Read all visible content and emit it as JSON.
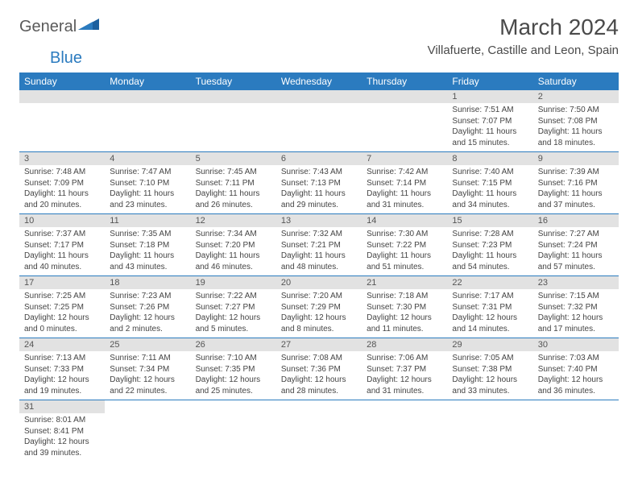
{
  "logo": {
    "text1": "General",
    "text2": "Blue"
  },
  "title": "March 2024",
  "location": "Villafuerte, Castille and Leon, Spain",
  "colors": {
    "header_bg": "#2b7bbf",
    "header_text": "#ffffff",
    "daynum_bg": "#e2e2e2",
    "row_border": "#2b7bbf",
    "body_text": "#444444",
    "title_text": "#4a4a4a"
  },
  "weekdays": [
    "Sunday",
    "Monday",
    "Tuesday",
    "Wednesday",
    "Thursday",
    "Friday",
    "Saturday"
  ],
  "weeks": [
    [
      {
        "n": "",
        "sunrise": "",
        "sunset": "",
        "daylight": ""
      },
      {
        "n": "",
        "sunrise": "",
        "sunset": "",
        "daylight": ""
      },
      {
        "n": "",
        "sunrise": "",
        "sunset": "",
        "daylight": ""
      },
      {
        "n": "",
        "sunrise": "",
        "sunset": "",
        "daylight": ""
      },
      {
        "n": "",
        "sunrise": "",
        "sunset": "",
        "daylight": ""
      },
      {
        "n": "1",
        "sunrise": "Sunrise: 7:51 AM",
        "sunset": "Sunset: 7:07 PM",
        "daylight": "Daylight: 11 hours and 15 minutes."
      },
      {
        "n": "2",
        "sunrise": "Sunrise: 7:50 AM",
        "sunset": "Sunset: 7:08 PM",
        "daylight": "Daylight: 11 hours and 18 minutes."
      }
    ],
    [
      {
        "n": "3",
        "sunrise": "Sunrise: 7:48 AM",
        "sunset": "Sunset: 7:09 PM",
        "daylight": "Daylight: 11 hours and 20 minutes."
      },
      {
        "n": "4",
        "sunrise": "Sunrise: 7:47 AM",
        "sunset": "Sunset: 7:10 PM",
        "daylight": "Daylight: 11 hours and 23 minutes."
      },
      {
        "n": "5",
        "sunrise": "Sunrise: 7:45 AM",
        "sunset": "Sunset: 7:11 PM",
        "daylight": "Daylight: 11 hours and 26 minutes."
      },
      {
        "n": "6",
        "sunrise": "Sunrise: 7:43 AM",
        "sunset": "Sunset: 7:13 PM",
        "daylight": "Daylight: 11 hours and 29 minutes."
      },
      {
        "n": "7",
        "sunrise": "Sunrise: 7:42 AM",
        "sunset": "Sunset: 7:14 PM",
        "daylight": "Daylight: 11 hours and 31 minutes."
      },
      {
        "n": "8",
        "sunrise": "Sunrise: 7:40 AM",
        "sunset": "Sunset: 7:15 PM",
        "daylight": "Daylight: 11 hours and 34 minutes."
      },
      {
        "n": "9",
        "sunrise": "Sunrise: 7:39 AM",
        "sunset": "Sunset: 7:16 PM",
        "daylight": "Daylight: 11 hours and 37 minutes."
      }
    ],
    [
      {
        "n": "10",
        "sunrise": "Sunrise: 7:37 AM",
        "sunset": "Sunset: 7:17 PM",
        "daylight": "Daylight: 11 hours and 40 minutes."
      },
      {
        "n": "11",
        "sunrise": "Sunrise: 7:35 AM",
        "sunset": "Sunset: 7:18 PM",
        "daylight": "Daylight: 11 hours and 43 minutes."
      },
      {
        "n": "12",
        "sunrise": "Sunrise: 7:34 AM",
        "sunset": "Sunset: 7:20 PM",
        "daylight": "Daylight: 11 hours and 46 minutes."
      },
      {
        "n": "13",
        "sunrise": "Sunrise: 7:32 AM",
        "sunset": "Sunset: 7:21 PM",
        "daylight": "Daylight: 11 hours and 48 minutes."
      },
      {
        "n": "14",
        "sunrise": "Sunrise: 7:30 AM",
        "sunset": "Sunset: 7:22 PM",
        "daylight": "Daylight: 11 hours and 51 minutes."
      },
      {
        "n": "15",
        "sunrise": "Sunrise: 7:28 AM",
        "sunset": "Sunset: 7:23 PM",
        "daylight": "Daylight: 11 hours and 54 minutes."
      },
      {
        "n": "16",
        "sunrise": "Sunrise: 7:27 AM",
        "sunset": "Sunset: 7:24 PM",
        "daylight": "Daylight: 11 hours and 57 minutes."
      }
    ],
    [
      {
        "n": "17",
        "sunrise": "Sunrise: 7:25 AM",
        "sunset": "Sunset: 7:25 PM",
        "daylight": "Daylight: 12 hours and 0 minutes."
      },
      {
        "n": "18",
        "sunrise": "Sunrise: 7:23 AM",
        "sunset": "Sunset: 7:26 PM",
        "daylight": "Daylight: 12 hours and 2 minutes."
      },
      {
        "n": "19",
        "sunrise": "Sunrise: 7:22 AM",
        "sunset": "Sunset: 7:27 PM",
        "daylight": "Daylight: 12 hours and 5 minutes."
      },
      {
        "n": "20",
        "sunrise": "Sunrise: 7:20 AM",
        "sunset": "Sunset: 7:29 PM",
        "daylight": "Daylight: 12 hours and 8 minutes."
      },
      {
        "n": "21",
        "sunrise": "Sunrise: 7:18 AM",
        "sunset": "Sunset: 7:30 PM",
        "daylight": "Daylight: 12 hours and 11 minutes."
      },
      {
        "n": "22",
        "sunrise": "Sunrise: 7:17 AM",
        "sunset": "Sunset: 7:31 PM",
        "daylight": "Daylight: 12 hours and 14 minutes."
      },
      {
        "n": "23",
        "sunrise": "Sunrise: 7:15 AM",
        "sunset": "Sunset: 7:32 PM",
        "daylight": "Daylight: 12 hours and 17 minutes."
      }
    ],
    [
      {
        "n": "24",
        "sunrise": "Sunrise: 7:13 AM",
        "sunset": "Sunset: 7:33 PM",
        "daylight": "Daylight: 12 hours and 19 minutes."
      },
      {
        "n": "25",
        "sunrise": "Sunrise: 7:11 AM",
        "sunset": "Sunset: 7:34 PM",
        "daylight": "Daylight: 12 hours and 22 minutes."
      },
      {
        "n": "26",
        "sunrise": "Sunrise: 7:10 AM",
        "sunset": "Sunset: 7:35 PM",
        "daylight": "Daylight: 12 hours and 25 minutes."
      },
      {
        "n": "27",
        "sunrise": "Sunrise: 7:08 AM",
        "sunset": "Sunset: 7:36 PM",
        "daylight": "Daylight: 12 hours and 28 minutes."
      },
      {
        "n": "28",
        "sunrise": "Sunrise: 7:06 AM",
        "sunset": "Sunset: 7:37 PM",
        "daylight": "Daylight: 12 hours and 31 minutes."
      },
      {
        "n": "29",
        "sunrise": "Sunrise: 7:05 AM",
        "sunset": "Sunset: 7:38 PM",
        "daylight": "Daylight: 12 hours and 33 minutes."
      },
      {
        "n": "30",
        "sunrise": "Sunrise: 7:03 AM",
        "sunset": "Sunset: 7:40 PM",
        "daylight": "Daylight: 12 hours and 36 minutes."
      }
    ],
    [
      {
        "n": "31",
        "sunrise": "Sunrise: 8:01 AM",
        "sunset": "Sunset: 8:41 PM",
        "daylight": "Daylight: 12 hours and 39 minutes."
      },
      {
        "n": "",
        "sunrise": "",
        "sunset": "",
        "daylight": ""
      },
      {
        "n": "",
        "sunrise": "",
        "sunset": "",
        "daylight": ""
      },
      {
        "n": "",
        "sunrise": "",
        "sunset": "",
        "daylight": ""
      },
      {
        "n": "",
        "sunrise": "",
        "sunset": "",
        "daylight": ""
      },
      {
        "n": "",
        "sunrise": "",
        "sunset": "",
        "daylight": ""
      },
      {
        "n": "",
        "sunrise": "",
        "sunset": "",
        "daylight": ""
      }
    ]
  ]
}
